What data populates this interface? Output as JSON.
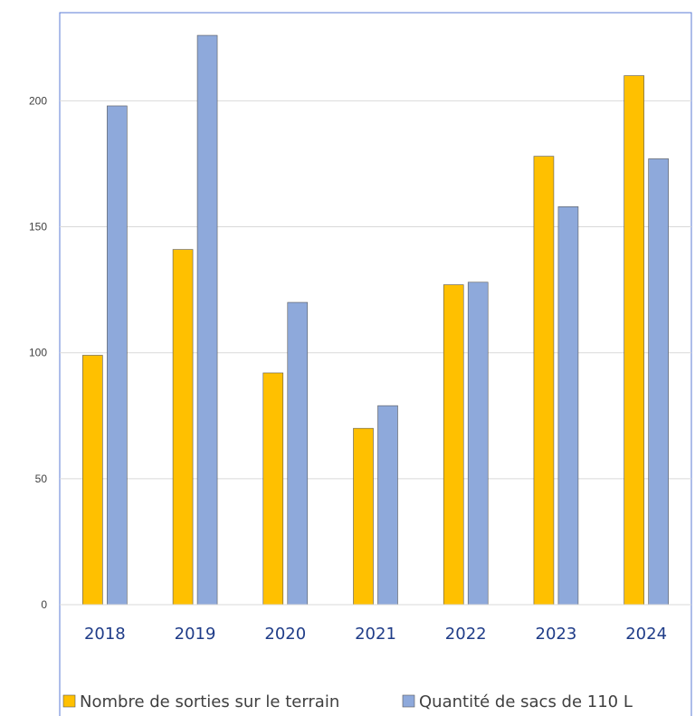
{
  "chart_data": {
    "type": "bar",
    "categories": [
      "2018",
      "2019",
      "2020",
      "2021",
      "2022",
      "2023",
      "2024"
    ],
    "series": [
      {
        "name": "Nombre de sorties sur le terrain",
        "values": [
          99,
          141,
          92,
          70,
          127,
          178,
          210
        ],
        "color": "#FFC000"
      },
      {
        "name": "Quantité de sacs de 110 L",
        "values": [
          198,
          226,
          120,
          79,
          128,
          158,
          177
        ],
        "color": "#8EA9DB"
      }
    ],
    "y_ticks": [
      0,
      50,
      100,
      150,
      200
    ],
    "ylim": [
      0,
      235
    ],
    "grid": true,
    "legend_position": "bottom",
    "colors": {
      "axis_text": "#404040",
      "category_text": "#1f3c88",
      "border": "#5b7bd5",
      "grid": "#d9d9d9",
      "bar_outline": "#595959"
    }
  }
}
